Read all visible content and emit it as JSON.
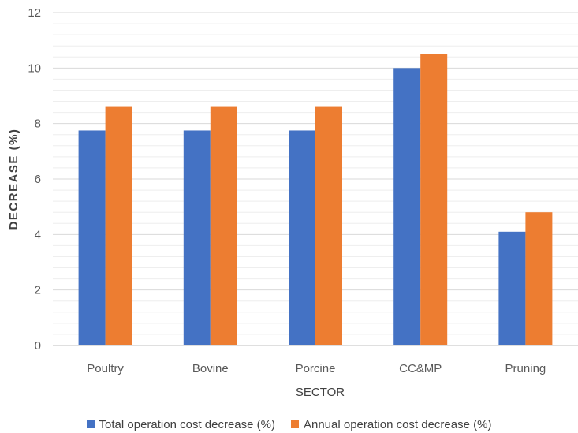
{
  "chart_data": {
    "type": "bar",
    "categories": [
      "Poultry",
      "Bovine",
      "Porcine",
      "CC&MP",
      "Pruning"
    ],
    "series": [
      {
        "name": "Total operation cost decrease (%)",
        "values": [
          7.75,
          7.75,
          7.75,
          10.0,
          4.1
        ],
        "color": "#4472C4"
      },
      {
        "name": "Annual operation cost decrease (%)",
        "values": [
          8.6,
          8.6,
          8.6,
          10.5,
          4.8
        ],
        "color": "#ED7D31"
      }
    ],
    "xlabel": "SECTOR",
    "ylabel": "DECREASE (%)",
    "ylim": [
      0,
      12
    ],
    "yticks": [
      0,
      2,
      4,
      6,
      8,
      10,
      12
    ],
    "grid": true,
    "legend_position": "bottom"
  }
}
